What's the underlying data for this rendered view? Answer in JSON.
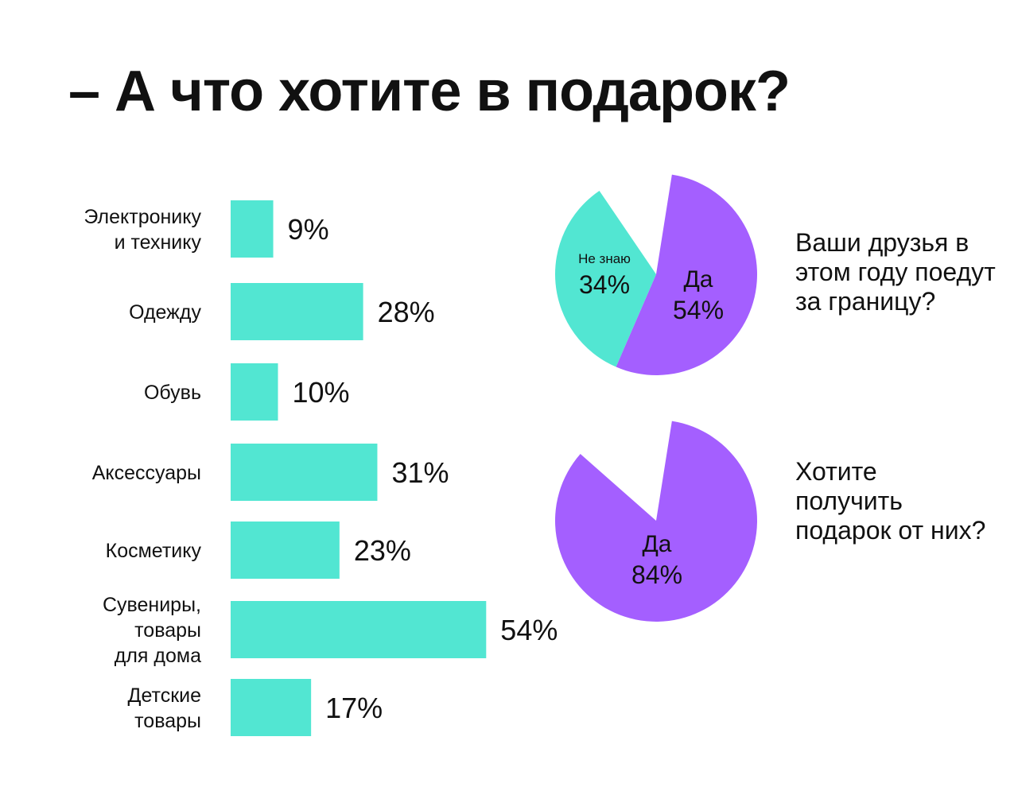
{
  "title": "– А что хотите в подарок?",
  "colors": {
    "teal": "#52e6d2",
    "purple": "#a45fff",
    "text": "#111111"
  },
  "chart_data": [
    {
      "type": "bar",
      "orientation": "horizontal",
      "categories": [
        [
          "Электронику",
          "и технику"
        ],
        [
          "Одежду"
        ],
        [
          "Обувь"
        ],
        [
          "Аксессуары"
        ],
        [
          "Косметику"
        ],
        [
          "Сувениры,",
          "товары",
          "для дома"
        ],
        [
          "Детские",
          "товары"
        ]
      ],
      "values": [
        9,
        28,
        10,
        31,
        23,
        54,
        17
      ],
      "value_labels": [
        "9%",
        "28%",
        "10%",
        "31%",
        "23%",
        "54%",
        "17%"
      ],
      "unit": "%",
      "color": "#52e6d2"
    },
    {
      "type": "pie",
      "question": "Ваши друзья в этом году поедут за границу?",
      "slices": [
        {
          "label": "Да",
          "value": 54,
          "value_label": "54%",
          "color": "#a45fff"
        },
        {
          "label": "Не знаю",
          "value": 34,
          "value_label": "34%",
          "color": "#52e6d2"
        }
      ]
    },
    {
      "type": "pie",
      "question": "Хотите получить подарок от них?",
      "slices": [
        {
          "label": "Да",
          "value": 84,
          "value_label": "84%",
          "color": "#a45fff"
        }
      ]
    }
  ]
}
